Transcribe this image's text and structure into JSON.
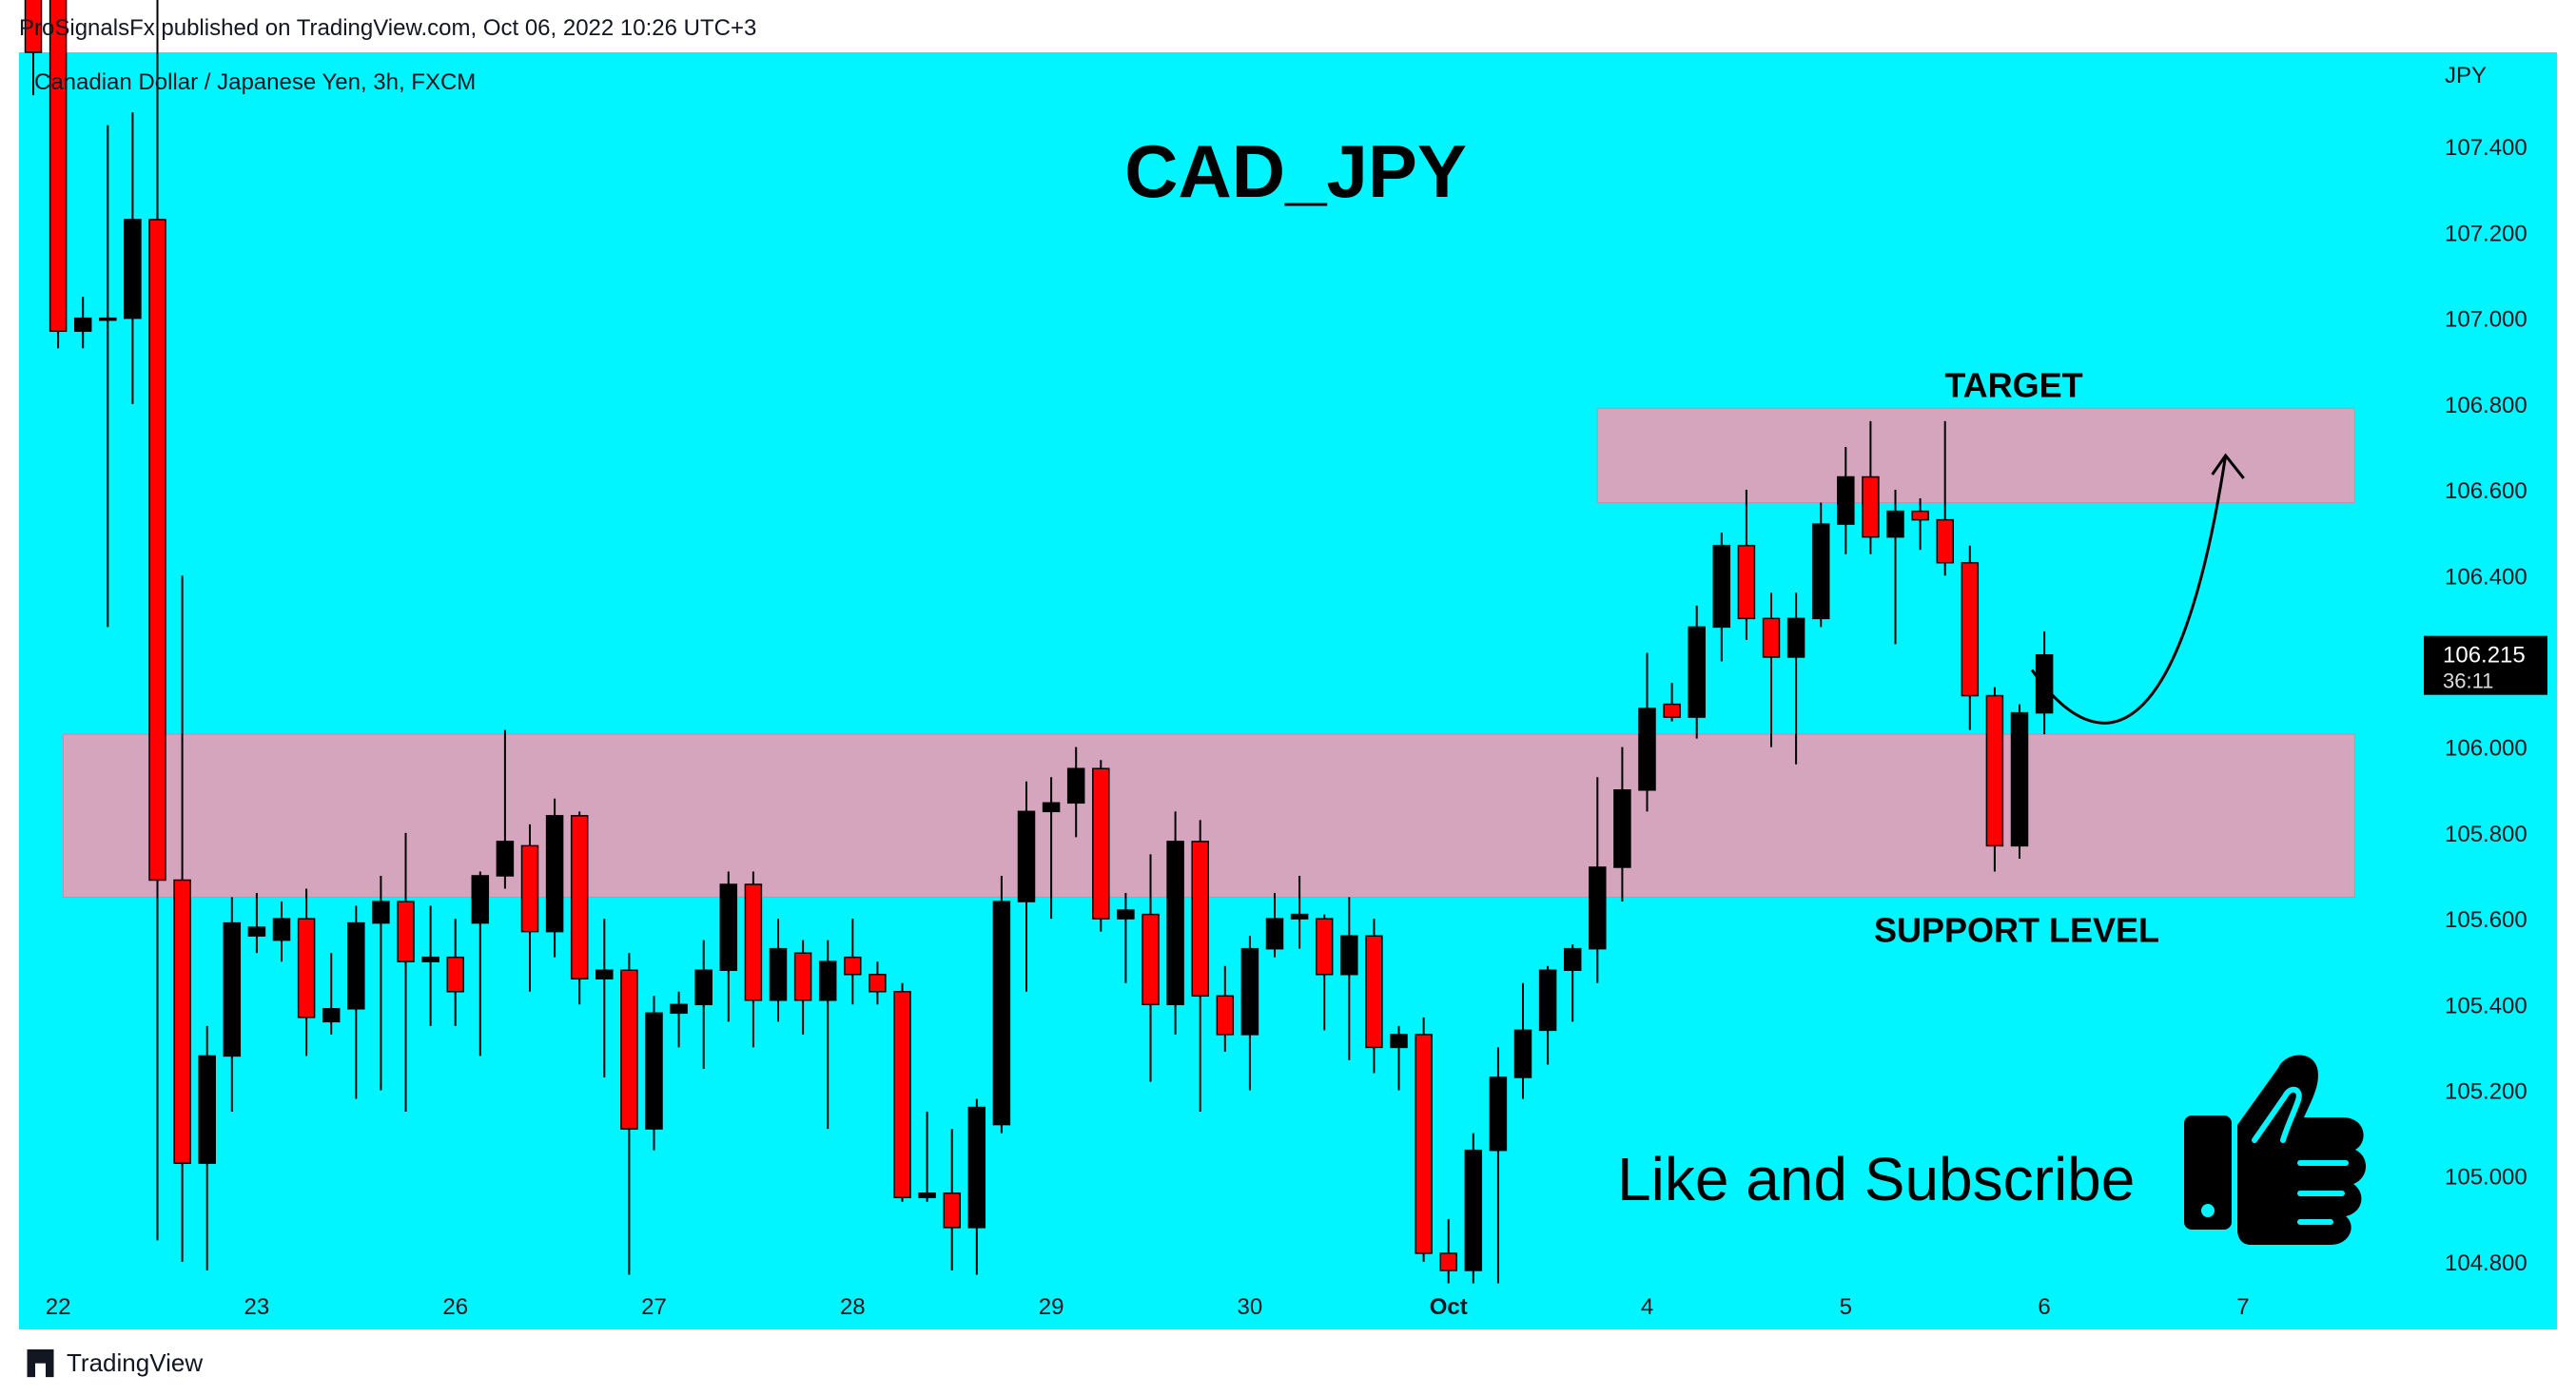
{
  "header": {
    "published": "ProSignalsFx published on TradingView.com, Oct 06, 2022 10:26 UTC+3",
    "symbol": "Canadian Dollar / Japanese Yen, 3h, FXCM"
  },
  "footer": {
    "brand": "TradingView",
    "logo_icon": "tradingview-logo-icon"
  },
  "colors": {
    "background": "#00f5ff",
    "zone": "#d4a5bd",
    "up": "#000000",
    "down": "#ff0000"
  },
  "chart_data": {
    "type": "candlestick",
    "title": "CAD_JPY",
    "currency_label": "JPY",
    "y_ticks": [
      "107.400",
      "107.200",
      "107.000",
      "106.800",
      "106.600",
      "106.400",
      "106.200",
      "106.000",
      "105.800",
      "105.600",
      "105.400",
      "105.200",
      "105.000",
      "104.800"
    ],
    "ylim": [
      104.72,
      107.62
    ],
    "x_ticks": [
      {
        "label": "22",
        "index": 1
      },
      {
        "label": "23",
        "index": 9
      },
      {
        "label": "26",
        "index": 17
      },
      {
        "label": "27",
        "index": 25
      },
      {
        "label": "28",
        "index": 33
      },
      {
        "label": "29",
        "index": 41
      },
      {
        "label": "30",
        "index": 49
      },
      {
        "label": "Oct",
        "index": 57
      },
      {
        "label": "4",
        "index": 65
      },
      {
        "label": "5",
        "index": 73
      },
      {
        "label": "6",
        "index": 81
      },
      {
        "label": "7",
        "index": 89
      }
    ],
    "last_price": "106.215",
    "countdown": "36:11",
    "zones": [
      {
        "name": "target",
        "label": "TARGET",
        "from_index": 63,
        "to_index": 93.5,
        "low": 106.57,
        "high": 106.79
      },
      {
        "name": "support",
        "label": "SUPPORT LEVEL",
        "from_index": 1.2,
        "to_index": 93.5,
        "low": 105.65,
        "high": 106.03
      }
    ],
    "projection": {
      "points": [
        [
          80.5,
          106.18
        ],
        [
          83.3,
          105.95
        ],
        [
          86.5,
          106.0
        ],
        [
          88.3,
          106.68
        ]
      ]
    },
    "annotations": {
      "promo": "Like and Subscribe",
      "promo_icon": "thumbs-up-icon"
    },
    "candles": [
      {
        "o": 107.9,
        "h": 108.0,
        "l": 107.52,
        "c": 107.62
      },
      {
        "o": 107.75,
        "h": 107.8,
        "l": 106.93,
        "c": 106.97
      },
      {
        "o": 106.97,
        "h": 107.05,
        "l": 106.93,
        "c": 107.0
      },
      {
        "o": 107.0,
        "h": 107.45,
        "l": 106.28,
        "c": 107.0
      },
      {
        "o": 107.0,
        "h": 107.48,
        "l": 106.8,
        "c": 107.23
      },
      {
        "o": 107.23,
        "h": 107.8,
        "l": 104.85,
        "c": 105.69
      },
      {
        "o": 105.69,
        "h": 106.4,
        "l": 104.8,
        "c": 105.03
      },
      {
        "o": 105.03,
        "h": 105.35,
        "l": 104.78,
        "c": 105.28
      },
      {
        "o": 105.28,
        "h": 105.65,
        "l": 105.15,
        "c": 105.59
      },
      {
        "o": 105.56,
        "h": 105.66,
        "l": 105.52,
        "c": 105.58
      },
      {
        "o": 105.55,
        "h": 105.64,
        "l": 105.5,
        "c": 105.6
      },
      {
        "o": 105.6,
        "h": 105.67,
        "l": 105.28,
        "c": 105.37
      },
      {
        "o": 105.36,
        "h": 105.52,
        "l": 105.33,
        "c": 105.39
      },
      {
        "o": 105.39,
        "h": 105.63,
        "l": 105.18,
        "c": 105.59
      },
      {
        "o": 105.59,
        "h": 105.7,
        "l": 105.2,
        "c": 105.64
      },
      {
        "o": 105.64,
        "h": 105.8,
        "l": 105.15,
        "c": 105.5
      },
      {
        "o": 105.5,
        "h": 105.63,
        "l": 105.35,
        "c": 105.51
      },
      {
        "o": 105.51,
        "h": 105.6,
        "l": 105.35,
        "c": 105.43
      },
      {
        "o": 105.59,
        "h": 105.71,
        "l": 105.28,
        "c": 105.7
      },
      {
        "o": 105.7,
        "h": 106.04,
        "l": 105.67,
        "c": 105.78
      },
      {
        "o": 105.77,
        "h": 105.82,
        "l": 105.43,
        "c": 105.57
      },
      {
        "o": 105.57,
        "h": 105.88,
        "l": 105.51,
        "c": 105.84
      },
      {
        "o": 105.84,
        "h": 105.85,
        "l": 105.4,
        "c": 105.46
      },
      {
        "o": 105.46,
        "h": 105.6,
        "l": 105.23,
        "c": 105.48
      },
      {
        "o": 105.48,
        "h": 105.52,
        "l": 104.77,
        "c": 105.11
      },
      {
        "o": 105.11,
        "h": 105.42,
        "l": 105.06,
        "c": 105.38
      },
      {
        "o": 105.38,
        "h": 105.43,
        "l": 105.3,
        "c": 105.4
      },
      {
        "o": 105.4,
        "h": 105.55,
        "l": 105.25,
        "c": 105.48
      },
      {
        "o": 105.48,
        "h": 105.71,
        "l": 105.36,
        "c": 105.68
      },
      {
        "o": 105.68,
        "h": 105.71,
        "l": 105.3,
        "c": 105.41
      },
      {
        "o": 105.41,
        "h": 105.6,
        "l": 105.36,
        "c": 105.53
      },
      {
        "o": 105.52,
        "h": 105.55,
        "l": 105.33,
        "c": 105.41
      },
      {
        "o": 105.41,
        "h": 105.55,
        "l": 105.11,
        "c": 105.5
      },
      {
        "o": 105.51,
        "h": 105.6,
        "l": 105.4,
        "c": 105.47
      },
      {
        "o": 105.47,
        "h": 105.5,
        "l": 105.4,
        "c": 105.43
      },
      {
        "o": 105.43,
        "h": 105.45,
        "l": 104.94,
        "c": 104.95
      },
      {
        "o": 104.95,
        "h": 105.15,
        "l": 104.94,
        "c": 104.96
      },
      {
        "o": 104.96,
        "h": 105.11,
        "l": 104.78,
        "c": 104.88
      },
      {
        "o": 104.88,
        "h": 105.18,
        "l": 104.77,
        "c": 105.16
      },
      {
        "o": 105.12,
        "h": 105.7,
        "l": 105.1,
        "c": 105.64
      },
      {
        "o": 105.64,
        "h": 105.92,
        "l": 105.43,
        "c": 105.85
      },
      {
        "o": 105.85,
        "h": 105.93,
        "l": 105.6,
        "c": 105.87
      },
      {
        "o": 105.87,
        "h": 106.0,
        "l": 105.79,
        "c": 105.95
      },
      {
        "o": 105.95,
        "h": 105.97,
        "l": 105.57,
        "c": 105.6
      },
      {
        "o": 105.6,
        "h": 105.66,
        "l": 105.45,
        "c": 105.62
      },
      {
        "o": 105.61,
        "h": 105.75,
        "l": 105.22,
        "c": 105.4
      },
      {
        "o": 105.4,
        "h": 105.85,
        "l": 105.33,
        "c": 105.78
      },
      {
        "o": 105.78,
        "h": 105.83,
        "l": 105.15,
        "c": 105.42
      },
      {
        "o": 105.42,
        "h": 105.49,
        "l": 105.29,
        "c": 105.33
      },
      {
        "o": 105.33,
        "h": 105.56,
        "l": 105.2,
        "c": 105.53
      },
      {
        "o": 105.53,
        "h": 105.66,
        "l": 105.51,
        "c": 105.6
      },
      {
        "o": 105.6,
        "h": 105.7,
        "l": 105.53,
        "c": 105.61
      },
      {
        "o": 105.6,
        "h": 105.61,
        "l": 105.34,
        "c": 105.47
      },
      {
        "o": 105.47,
        "h": 105.65,
        "l": 105.27,
        "c": 105.56
      },
      {
        "o": 105.56,
        "h": 105.6,
        "l": 105.24,
        "c": 105.3
      },
      {
        "o": 105.3,
        "h": 105.35,
        "l": 105.2,
        "c": 105.33
      },
      {
        "o": 105.33,
        "h": 105.37,
        "l": 104.8,
        "c": 104.82
      },
      {
        "o": 104.82,
        "h": 104.9,
        "l": 104.75,
        "c": 104.78
      },
      {
        "o": 104.78,
        "h": 105.1,
        "l": 104.75,
        "c": 105.06
      },
      {
        "o": 105.06,
        "h": 105.3,
        "l": 104.75,
        "c": 105.23
      },
      {
        "o": 105.23,
        "h": 105.45,
        "l": 105.18,
        "c": 105.34
      },
      {
        "o": 105.34,
        "h": 105.49,
        "l": 105.26,
        "c": 105.48
      },
      {
        "o": 105.48,
        "h": 105.54,
        "l": 105.36,
        "c": 105.53
      },
      {
        "o": 105.53,
        "h": 105.93,
        "l": 105.45,
        "c": 105.72
      },
      {
        "o": 105.72,
        "h": 106.0,
        "l": 105.64,
        "c": 105.9
      },
      {
        "o": 105.9,
        "h": 106.22,
        "l": 105.85,
        "c": 106.09
      },
      {
        "o": 106.1,
        "h": 106.15,
        "l": 106.06,
        "c": 106.07
      },
      {
        "o": 106.07,
        "h": 106.33,
        "l": 106.02,
        "c": 106.28
      },
      {
        "o": 106.28,
        "h": 106.5,
        "l": 106.2,
        "c": 106.47
      },
      {
        "o": 106.47,
        "h": 106.6,
        "l": 106.25,
        "c": 106.3
      },
      {
        "o": 106.3,
        "h": 106.36,
        "l": 106.0,
        "c": 106.21
      },
      {
        "o": 106.21,
        "h": 106.36,
        "l": 105.96,
        "c": 106.3
      },
      {
        "o": 106.3,
        "h": 106.57,
        "l": 106.28,
        "c": 106.52
      },
      {
        "o": 106.52,
        "h": 106.7,
        "l": 106.45,
        "c": 106.63
      },
      {
        "o": 106.63,
        "h": 106.76,
        "l": 106.45,
        "c": 106.49
      },
      {
        "o": 106.49,
        "h": 106.6,
        "l": 106.24,
        "c": 106.55
      },
      {
        "o": 106.55,
        "h": 106.58,
        "l": 106.46,
        "c": 106.53
      },
      {
        "o": 106.53,
        "h": 106.76,
        "l": 106.4,
        "c": 106.43
      },
      {
        "o": 106.43,
        "h": 106.47,
        "l": 106.04,
        "c": 106.12
      },
      {
        "o": 106.12,
        "h": 106.14,
        "l": 105.71,
        "c": 105.77
      },
      {
        "o": 105.77,
        "h": 106.1,
        "l": 105.74,
        "c": 106.08
      },
      {
        "o": 106.08,
        "h": 106.27,
        "l": 106.03,
        "c": 106.215
      }
    ]
  }
}
